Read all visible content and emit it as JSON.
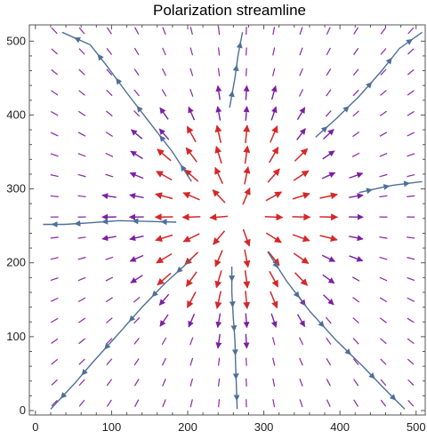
{
  "chart_data": {
    "type": "vector-field",
    "title": "Polarization streamline",
    "xlabel": "",
    "ylabel": "",
    "xlim": [
      -8,
      512
    ],
    "ylim": [
      -6,
      522
    ],
    "x_ticks": [
      0,
      100,
      200,
      300,
      400,
      500
    ],
    "y_ticks": [
      0,
      100,
      200,
      300,
      400,
      500
    ],
    "grid": false,
    "center": [
      266,
      264
    ],
    "field": {
      "grid_x_start": 25,
      "grid_x_step": 36,
      "grid_x_count": 14,
      "grid_y_start": 10,
      "grid_y_step": 28,
      "grid_y_count": 19,
      "direction": "radial-outward",
      "colors": {
        "strong": "#d62728",
        "medium": "#7b1fa2",
        "weak": "#8e24aa"
      }
    },
    "streamlines": [
      {
        "points": [
          [
            205,
            310
          ],
          [
            180,
            350
          ],
          [
            150,
            390
          ],
          [
            120,
            430
          ],
          [
            95,
            465
          ],
          [
            72,
            495
          ],
          [
            35,
            512
          ]
        ]
      },
      {
        "points": [
          [
            255,
            410
          ],
          [
            262,
            450
          ],
          [
            266,
            480
          ],
          [
            272,
            512
          ]
        ]
      },
      {
        "points": [
          [
            368,
            370
          ],
          [
            395,
            395
          ],
          [
            425,
            425
          ],
          [
            455,
            460
          ],
          [
            478,
            490
          ],
          [
            508,
            512
          ]
        ]
      },
      {
        "points": [
          [
            425,
            295
          ],
          [
            455,
            302
          ],
          [
            470,
            305
          ],
          [
            508,
            310
          ]
        ]
      },
      {
        "points": [
          [
            185,
            255
          ],
          [
            150,
            256
          ],
          [
            110,
            257
          ],
          [
            70,
            254
          ],
          [
            38,
            252
          ],
          [
            10,
            252
          ]
        ]
      },
      {
        "points": [
          [
            205,
            205
          ],
          [
            170,
            172
          ],
          [
            140,
            140
          ],
          [
            110,
            105
          ],
          [
            75,
            65
          ],
          [
            50,
            35
          ],
          [
            20,
            2
          ]
        ]
      },
      {
        "points": [
          [
            258,
            195
          ],
          [
            258,
            160
          ],
          [
            260,
            125
          ],
          [
            262,
            95
          ],
          [
            263,
            60
          ],
          [
            264,
            30
          ],
          [
            265,
            2
          ]
        ]
      },
      {
        "points": [
          [
            305,
            215
          ],
          [
            330,
            175
          ],
          [
            360,
            135
          ],
          [
            395,
            95
          ],
          [
            430,
            60
          ],
          [
            458,
            30
          ],
          [
            485,
            2
          ]
        ]
      }
    ],
    "colors": {
      "streamline": "#4e6f96",
      "axis": "#555555"
    }
  }
}
